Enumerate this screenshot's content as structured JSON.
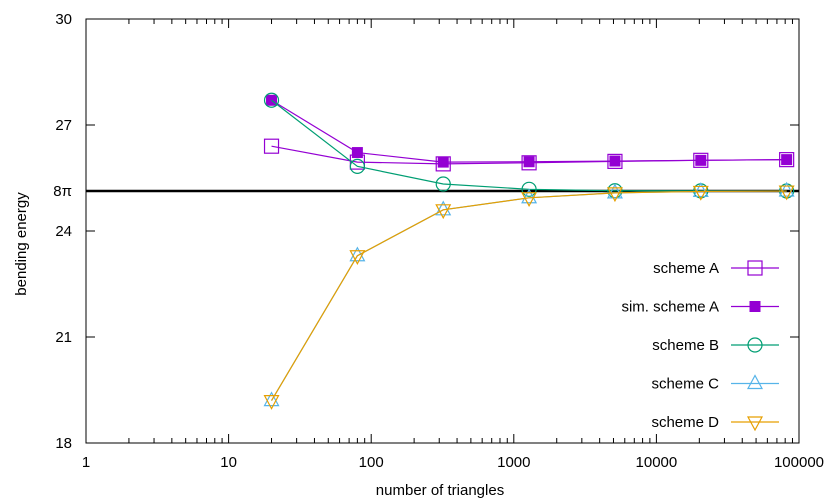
{
  "chart_data": {
    "type": "line",
    "xlabel": "number of triangles",
    "ylabel": "bending energy",
    "x_scale": "log",
    "xlim": [
      1,
      100000
    ],
    "ylim": [
      18,
      30
    ],
    "grid": false,
    "legend_position": "bottom-right",
    "x_ticks": [
      {
        "value": 1,
        "label": "1"
      },
      {
        "value": 10,
        "label": "10"
      },
      {
        "value": 100,
        "label": "100"
      },
      {
        "value": 1000,
        "label": "1000"
      },
      {
        "value": 10000,
        "label": "10000"
      },
      {
        "value": 100000,
        "label": "100000"
      }
    ],
    "y_ticks": [
      {
        "value": 18,
        "label": "18"
      },
      {
        "value": 21,
        "label": "21"
      },
      {
        "value": 24,
        "label": "24"
      },
      {
        "value": 25.1327,
        "label": "8π"
      },
      {
        "value": 27,
        "label": "27"
      },
      {
        "value": 30,
        "label": "30"
      }
    ],
    "reference_line": {
      "value": 25.1327,
      "label": "8π",
      "color": "#000000"
    },
    "series": [
      {
        "name": "scheme A",
        "color": "#9400d3",
        "marker": "square-open",
        "x": [
          20,
          80,
          320,
          1280,
          5120,
          20480,
          81920
        ],
        "y": [
          26.4,
          25.95,
          25.9,
          25.93,
          25.97,
          26.0,
          26.02
        ]
      },
      {
        "name": "sim. scheme A",
        "color": "#9400d3",
        "marker": "square-filled",
        "x": [
          20,
          80,
          320,
          1280,
          5120,
          20480,
          81920
        ],
        "y": [
          27.7,
          26.22,
          25.95,
          25.96,
          25.98,
          26.0,
          26.02
        ]
      },
      {
        "name": "scheme B",
        "color": "#009e73",
        "marker": "circle-open",
        "x": [
          20,
          80,
          320,
          1280,
          5120,
          20480,
          81920
        ],
        "y": [
          27.7,
          25.83,
          25.33,
          25.18,
          25.14,
          25.135,
          25.133
        ]
      },
      {
        "name": "scheme C",
        "color": "#56b4e9",
        "marker": "triangle-up-open",
        "x": [
          20,
          80,
          320,
          1280,
          5120,
          20480,
          81920
        ],
        "y": [
          19.2,
          23.3,
          24.6,
          24.94,
          25.08,
          25.12,
          25.13
        ]
      },
      {
        "name": "scheme D",
        "color": "#e69f00",
        "marker": "triangle-down-open",
        "x": [
          20,
          80,
          320,
          1280,
          5120,
          20480,
          81920
        ],
        "y": [
          19.2,
          23.3,
          24.6,
          24.94,
          25.08,
          25.12,
          25.13
        ]
      }
    ]
  }
}
